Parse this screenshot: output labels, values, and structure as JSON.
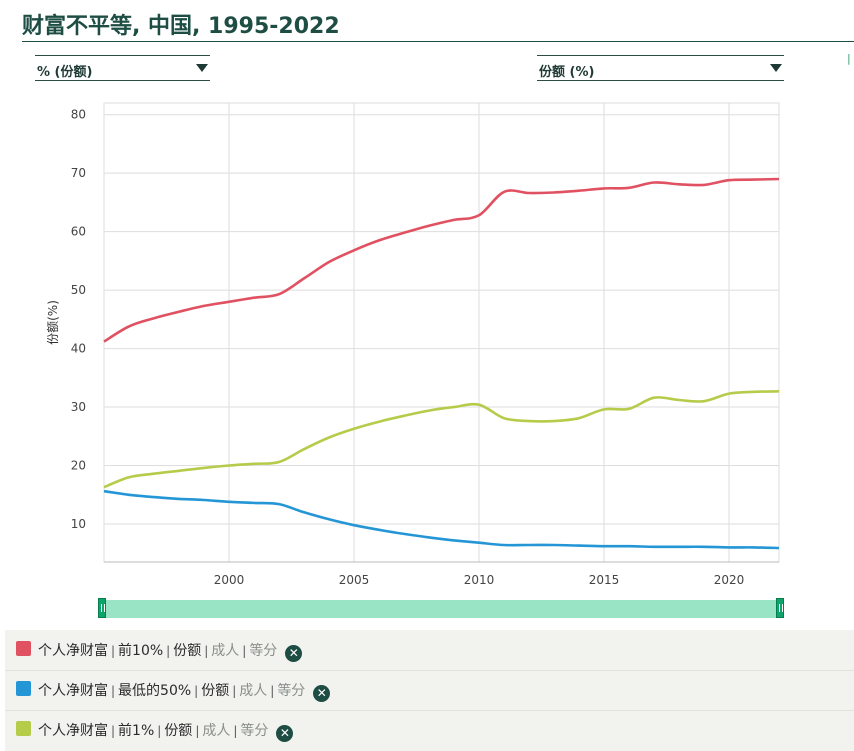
{
  "title": "财富不平等, 中国, 1995-2022",
  "selectors": {
    "left": "% (份额)",
    "right": "份额 (%)"
  },
  "legend": [
    {
      "name": "个人净财富",
      "group": "前10%",
      "measure": "份额",
      "pop": "成人",
      "method": "等分",
      "color": "#e05161"
    },
    {
      "name": "个人净财富",
      "group": "最低的50%",
      "measure": "份额",
      "pop": "成人",
      "method": "等分",
      "color": "#2496d6"
    },
    {
      "name": "个人净财富",
      "group": "前1%",
      "measure": "份额",
      "pop": "成人",
      "method": "等分",
      "color": "#b5cc4b"
    }
  ],
  "chart_data": {
    "type": "line",
    "title": "财富不平等, 中国, 1995-2022",
    "ylabel": "份额(%)",
    "xlabel": "",
    "xlim": [
      1995,
      2022
    ],
    "ylim": [
      3.5,
      82
    ],
    "yticks": [
      10,
      20,
      30,
      40,
      50,
      60,
      70,
      80
    ],
    "xticks": [
      2000,
      2005,
      2010,
      2015,
      2020
    ],
    "grid": true,
    "x": [
      1995,
      1996,
      1997,
      1998,
      1999,
      2000,
      2001,
      2002,
      2003,
      2004,
      2005,
      2006,
      2007,
      2008,
      2009,
      2010,
      2011,
      2012,
      2013,
      2014,
      2015,
      2016,
      2017,
      2018,
      2019,
      2020,
      2021,
      2022
    ],
    "series": [
      {
        "name": "前10%",
        "color": "#e05161",
        "values": [
          41.2,
          43.8,
          45.2,
          46.3,
          47.3,
          48.0,
          48.7,
          49.3,
          52.0,
          54.8,
          56.8,
          58.5,
          59.8,
          61.0,
          62.0,
          62.8,
          66.8,
          66.6,
          66.7,
          67.0,
          67.4,
          67.5,
          68.4,
          68.1,
          68.0,
          68.8,
          68.9,
          69.0
        ]
      },
      {
        "name": "最低的50%",
        "color": "#2496d6",
        "values": [
          15.6,
          15.0,
          14.6,
          14.3,
          14.1,
          13.8,
          13.6,
          13.4,
          12.0,
          10.8,
          9.8,
          9.0,
          8.3,
          7.7,
          7.2,
          6.8,
          6.4,
          6.4,
          6.4,
          6.3,
          6.2,
          6.2,
          6.1,
          6.1,
          6.1,
          6.0,
          6.0,
          5.9
        ]
      },
      {
        "name": "前1%",
        "color": "#b5cc4b",
        "values": [
          16.3,
          18.0,
          18.6,
          19.1,
          19.6,
          20.0,
          20.3,
          20.6,
          22.8,
          24.8,
          26.3,
          27.5,
          28.5,
          29.4,
          30.0,
          30.4,
          28.1,
          27.6,
          27.6,
          28.1,
          29.6,
          29.7,
          31.6,
          31.2,
          31.0,
          32.3,
          32.6,
          32.7
        ]
      }
    ]
  }
}
